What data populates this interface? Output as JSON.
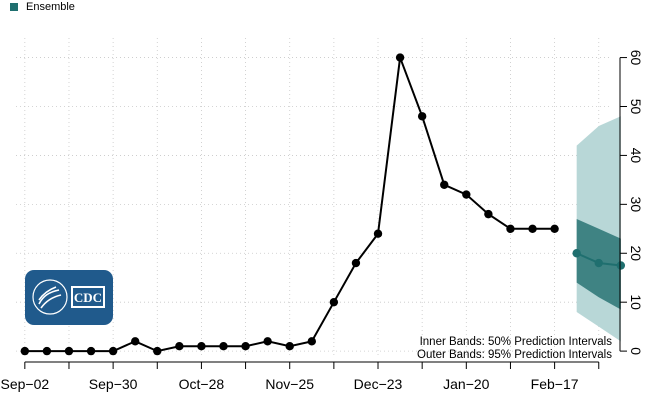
{
  "legend": {
    "label": "Ensemble",
    "color": "#1f6f6f"
  },
  "notes": {
    "inner": "Inner Bands: 50% Prediction Intervals",
    "outer": "Outer Bands: 95% Prediction Intervals"
  },
  "logo": {
    "text": "CDC",
    "color": "#205a8c"
  },
  "colors": {
    "observed": "#000000",
    "forecast": "#1f6f6f",
    "band_outer": "#b8d7d7",
    "band_inner": "#3f8383",
    "grid": "#c8c8c8"
  },
  "chart_data": {
    "type": "line",
    "x_tick_labels": [
      "Sep−02",
      "Sep−30",
      "Oct−28",
      "Nov−25",
      "Dec−23",
      "Jan−20",
      "Feb−17"
    ],
    "x_tick_weeks": [
      0,
      4,
      8,
      12,
      16,
      20,
      24
    ],
    "y_ticks": [
      0,
      10,
      20,
      30,
      40,
      50,
      60
    ],
    "ylim": [
      -1,
      64
    ],
    "xlim": [
      -0.4,
      26.6
    ],
    "y_axis_side": "right",
    "grid": true,
    "observed": {
      "weeks": [
        0,
        1,
        2,
        3,
        4,
        5,
        6,
        7,
        8,
        9,
        10,
        11,
        12,
        13,
        14,
        15,
        16,
        17,
        18,
        19,
        20,
        21,
        22,
        23,
        24
      ],
      "values": [
        0,
        0,
        0,
        0,
        0,
        2,
        0,
        1,
        1,
        1,
        1,
        2,
        1,
        2,
        10,
        18,
        24,
        60,
        48,
        34,
        32,
        28,
        25,
        25,
        25
      ]
    },
    "forecast": {
      "series": "Ensemble",
      "weeks": [
        25,
        26,
        27
      ],
      "median": [
        20,
        18,
        17.5
      ],
      "lower_50": [
        14,
        11,
        8.5
      ],
      "upper_50": [
        27,
        25,
        23
      ],
      "lower_95": [
        8,
        5,
        2
      ],
      "upper_95": [
        42,
        46,
        48
      ]
    }
  }
}
